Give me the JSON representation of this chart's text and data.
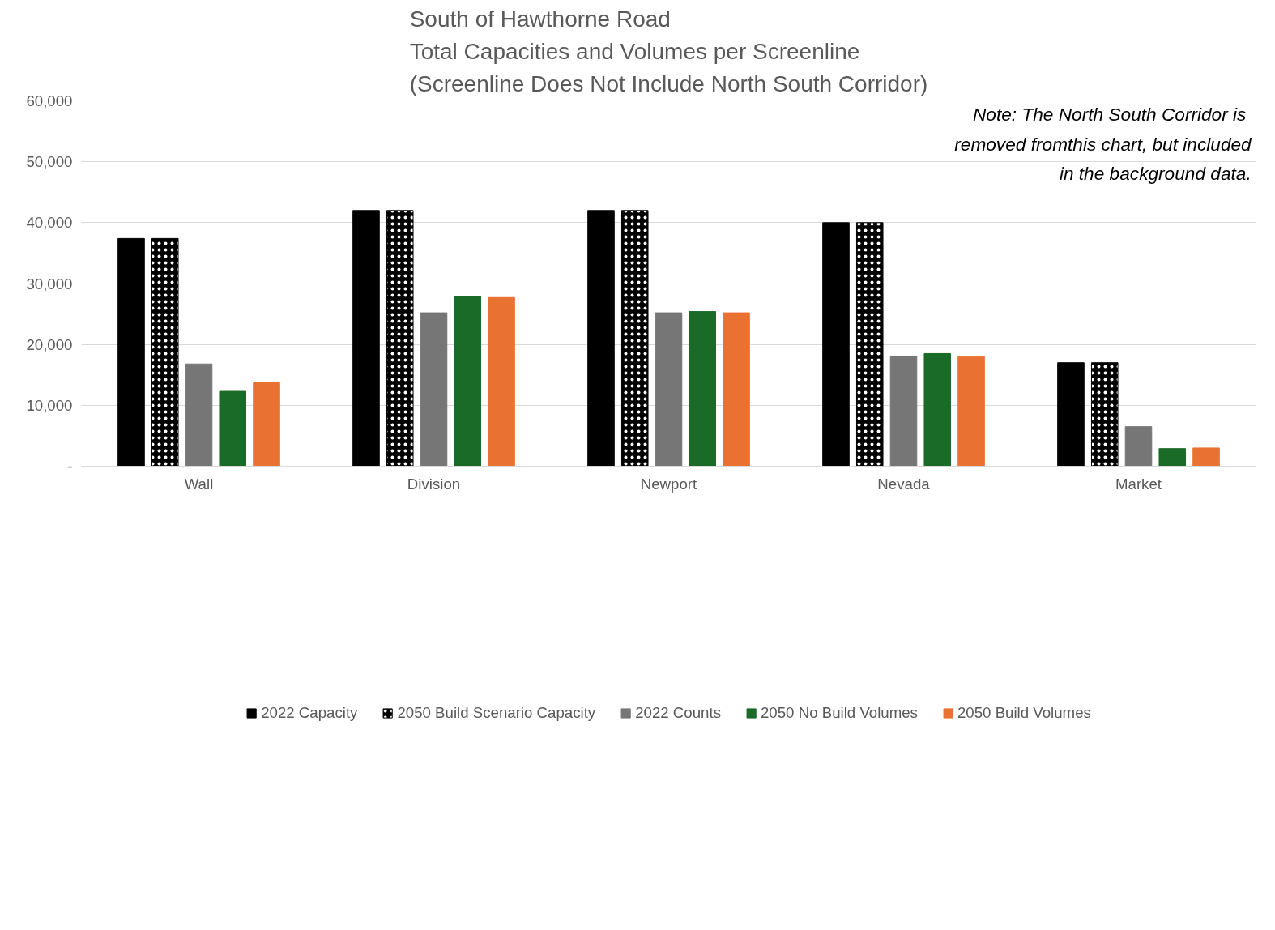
{
  "chart_data": {
    "type": "bar",
    "title": "South of Hawthorne Road\nTotal Capacities and Volumes per Screenline\n(Screenline Does Not Include North South Corridor)",
    "categories": [
      "Wall",
      "Division",
      "Newport",
      "Nevada",
      "Market"
    ],
    "series": [
      {
        "name": "2022 Capacity",
        "color": "#000000",
        "values": [
          37400,
          42000,
          42000,
          40000,
          17000
        ]
      },
      {
        "name": "2050 Build Scenario Capacity",
        "color": "#000000",
        "values": [
          37400,
          42000,
          42000,
          40000,
          17000
        ]
      },
      {
        "name": "2022 Counts",
        "color": "#767676",
        "values": [
          16800,
          25200,
          25200,
          18100,
          6500
        ]
      },
      {
        "name": "2050 No Build Volumes",
        "color": "#1a6b28",
        "values": [
          12300,
          27900,
          25400,
          18500,
          2900
        ]
      },
      {
        "name": "2050 Build Volumes",
        "color": "#e97132",
        "values": [
          13700,
          27700,
          25200,
          18000,
          3000
        ]
      }
    ],
    "ylim": [
      0,
      60000
    ],
    "yticks": [
      {
        "value": 0,
        "label": "-"
      },
      {
        "value": 10000,
        "label": "10,000"
      },
      {
        "value": 20000,
        "label": "20,000"
      },
      {
        "value": 30000,
        "label": "30,000"
      },
      {
        "value": 40000,
        "label": "40,000"
      },
      {
        "value": 50000,
        "label": "50,000"
      },
      {
        "value": 60000,
        "label": "60,000"
      }
    ],
    "grid": "y",
    "legend": "bottom",
    "annotations": [
      "Note:  The North South Corridor is\nremoved fromthis chart, but included\nin the background data."
    ]
  }
}
